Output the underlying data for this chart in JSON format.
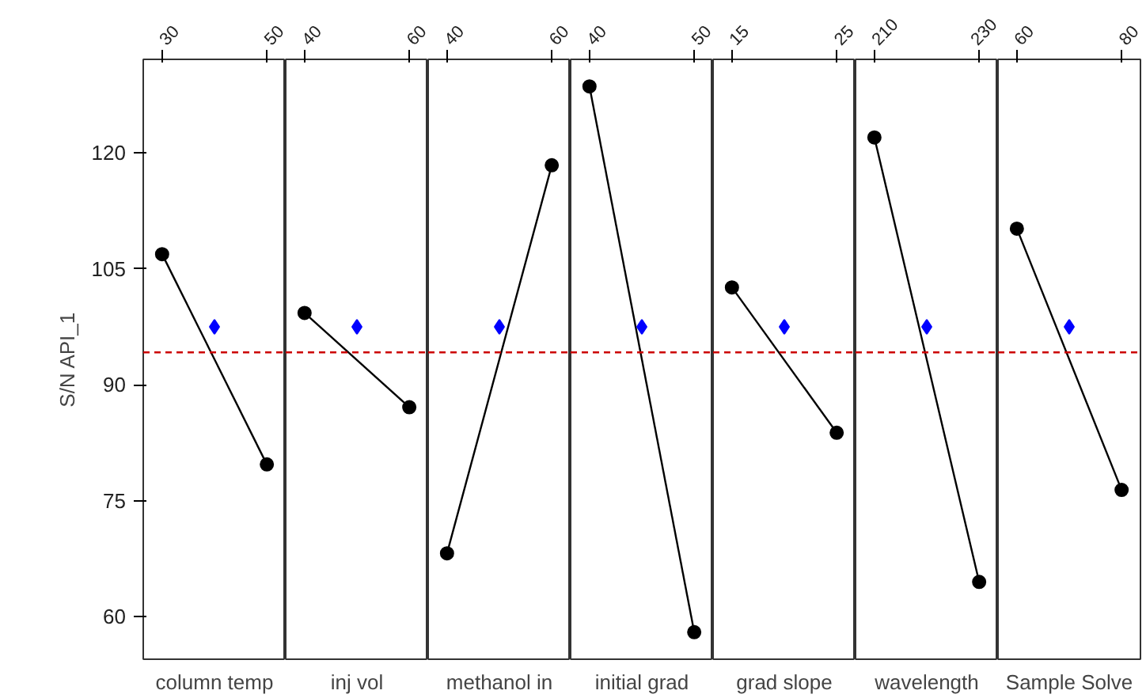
{
  "chart_data": [
    {
      "type": "line",
      "ylabel": "S/N API_1",
      "xlabel": "column temp",
      "xlim": [
        26.4,
        53.6
      ],
      "xticks": [
        30,
        50
      ],
      "ylim": [
        54.5,
        132.1
      ],
      "yticks": [
        60,
        75,
        90,
        105,
        120
      ],
      "grid": false,
      "series": [
        {
          "type": "line",
          "color": "#000000",
          "marker": "circle",
          "x": [
            30,
            50
          ],
          "values": [
            106.9,
            79.7
          ]
        },
        {
          "type": "scatter",
          "color": "#0000ff",
          "marker": "diamond",
          "x": [
            40
          ],
          "values": [
            97.5
          ]
        }
      ],
      "ref_lines": [
        {
          "axis": "y",
          "value": 94.2,
          "color": "#cc0000",
          "line_style": "dashed"
        }
      ]
    },
    {
      "type": "line",
      "xlabel": "inj vol",
      "xlim": [
        36.4,
        63.6
      ],
      "xticks": [
        40,
        60
      ],
      "ylim": [
        54.5,
        132.1
      ],
      "yticks": [
        60,
        75,
        90,
        105,
        120
      ],
      "tick_labels": "x",
      "grid": false,
      "series": [
        {
          "type": "line",
          "color": "#000000",
          "marker": "circle",
          "x": [
            40,
            60
          ],
          "values": [
            99.3,
            87.1
          ]
        },
        {
          "type": "scatter",
          "color": "#0000ff",
          "marker": "diamond",
          "x": [
            50
          ],
          "values": [
            97.5
          ]
        }
      ],
      "ref_lines": [
        {
          "axis": "y",
          "value": 94.2,
          "color": "#cc0000",
          "line_style": "dashed"
        }
      ]
    },
    {
      "type": "line",
      "xlabel": "methanol in",
      "xlim": [
        36.4,
        63.6
      ],
      "xticks": [
        40,
        60
      ],
      "ylim": [
        54.5,
        132.1
      ],
      "yticks": [
        60,
        75,
        90,
        105,
        120
      ],
      "tick_labels": "x",
      "grid": false,
      "series": [
        {
          "type": "line",
          "color": "#000000",
          "marker": "circle",
          "x": [
            40,
            60
          ],
          "values": [
            68.2,
            118.4
          ]
        },
        {
          "type": "scatter",
          "color": "#0000ff",
          "marker": "diamond",
          "x": [
            50
          ],
          "values": [
            97.5
          ]
        }
      ],
      "ref_lines": [
        {
          "axis": "y",
          "value": 94.2,
          "color": "#cc0000",
          "line_style": "dashed"
        }
      ]
    },
    {
      "type": "line",
      "xlabel": "initial grad",
      "xlim": [
        38.2,
        51.8
      ],
      "xticks": [
        40,
        50
      ],
      "ylim": [
        54.5,
        132.1
      ],
      "yticks": [
        60,
        75,
        90,
        105,
        120
      ],
      "tick_labels": "x",
      "grid": false,
      "series": [
        {
          "type": "line",
          "color": "#000000",
          "marker": "circle",
          "x": [
            40,
            50
          ],
          "values": [
            128.6,
            58.0
          ]
        },
        {
          "type": "scatter",
          "color": "#0000ff",
          "marker": "diamond",
          "x": [
            45
          ],
          "values": [
            97.5
          ]
        }
      ],
      "ref_lines": [
        {
          "axis": "y",
          "value": 94.2,
          "color": "#cc0000",
          "line_style": "dashed"
        }
      ]
    },
    {
      "type": "line",
      "xlabel": "grad slope",
      "xlim": [
        13.2,
        26.8
      ],
      "xticks": [
        15,
        25
      ],
      "ylim": [
        54.5,
        132.1
      ],
      "yticks": [
        60,
        75,
        90,
        105,
        120
      ],
      "tick_labels": "x",
      "grid": false,
      "series": [
        {
          "type": "line",
          "color": "#000000",
          "marker": "circle",
          "x": [
            15,
            25
          ],
          "values": [
            102.6,
            83.8
          ]
        },
        {
          "type": "scatter",
          "color": "#0000ff",
          "marker": "diamond",
          "x": [
            20
          ],
          "values": [
            97.5
          ]
        }
      ],
      "ref_lines": [
        {
          "axis": "y",
          "value": 94.2,
          "color": "#cc0000",
          "line_style": "dashed"
        }
      ]
    },
    {
      "type": "line",
      "xlabel": "wavelength",
      "xlim": [
        206.4,
        233.6
      ],
      "xticks": [
        210,
        230
      ],
      "ylim": [
        54.5,
        132.1
      ],
      "yticks": [
        60,
        75,
        90,
        105,
        120
      ],
      "tick_labels": "x",
      "grid": false,
      "series": [
        {
          "type": "line",
          "color": "#000000",
          "marker": "circle",
          "x": [
            210,
            230
          ],
          "values": [
            122.0,
            64.5
          ]
        },
        {
          "type": "scatter",
          "color": "#0000ff",
          "marker": "diamond",
          "x": [
            220
          ],
          "values": [
            97.5
          ]
        }
      ],
      "ref_lines": [
        {
          "axis": "y",
          "value": 94.2,
          "color": "#cc0000",
          "line_style": "dashed"
        }
      ]
    },
    {
      "type": "line",
      "xlabel": "Sample Solve",
      "xlim": [
        56.4,
        83.6
      ],
      "xticks": [
        60,
        80
      ],
      "ylim": [
        54.5,
        132.1
      ],
      "yticks": [
        60,
        75,
        90,
        105,
        120
      ],
      "tick_labels": "x",
      "grid": false,
      "series": [
        {
          "type": "line",
          "color": "#000000",
          "marker": "circle",
          "x": [
            60,
            80
          ],
          "values": [
            110.2,
            76.4
          ]
        },
        {
          "type": "scatter",
          "color": "#0000ff",
          "marker": "diamond",
          "x": [
            70
          ],
          "values": [
            97.5
          ]
        }
      ],
      "ref_lines": [
        {
          "axis": "y",
          "value": 94.2,
          "color": "#cc0000",
          "line_style": "dashed"
        }
      ]
    }
  ]
}
